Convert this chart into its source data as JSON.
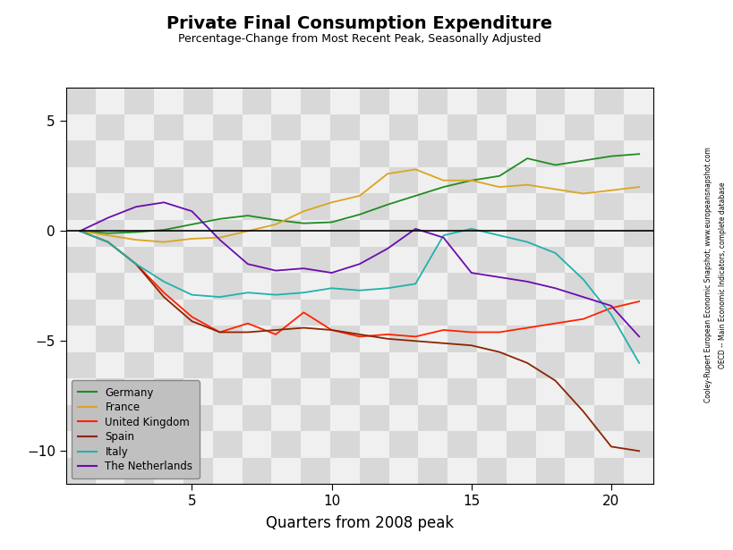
{
  "title": "Private Final Consumption Expenditure",
  "subtitle": "Percentage-Change from Most Recent Peak, Seasonally Adjusted",
  "xlabel": "Quarters from 2008 peak",
  "watermark_line1": "Cooley-Rupert European Economic Snapshot; www.europeansnapshot.com",
  "watermark_line2": "OECD -- Main Economic Indicators, complete database",
  "ylim": [
    -11.5,
    6.5
  ],
  "xlim": [
    0.5,
    21.5
  ],
  "yticks": [
    -10,
    -5,
    0,
    5
  ],
  "xticks": [
    5,
    10,
    15,
    20
  ],
  "legend_order": [
    "Germany",
    "France",
    "United Kingdom",
    "Spain",
    "Italy",
    "The Netherlands"
  ],
  "series": {
    "Germany": {
      "color": "#228B22",
      "x": [
        1,
        2,
        3,
        4,
        5,
        6,
        7,
        8,
        9,
        10,
        11,
        12,
        13,
        14,
        15,
        16,
        17,
        18,
        19,
        20,
        21
      ],
      "y": [
        0.0,
        -0.1,
        -0.05,
        0.05,
        0.3,
        0.55,
        0.7,
        0.5,
        0.35,
        0.4,
        0.75,
        1.2,
        1.6,
        2.0,
        2.3,
        2.5,
        3.3,
        3.0,
        3.2,
        3.4,
        3.5
      ]
    },
    "France": {
      "color": "#DAA520",
      "x": [
        1,
        2,
        3,
        4,
        5,
        6,
        7,
        8,
        9,
        10,
        11,
        12,
        13,
        14,
        15,
        16,
        17,
        18,
        19,
        20,
        21
      ],
      "y": [
        0.0,
        -0.2,
        -0.4,
        -0.5,
        -0.35,
        -0.3,
        0.0,
        0.3,
        0.9,
        1.3,
        1.6,
        2.6,
        2.8,
        2.3,
        2.3,
        2.0,
        2.1,
        1.9,
        1.7,
        1.85,
        2.0
      ]
    },
    "United Kingdom": {
      "color": "#FF2200",
      "x": [
        1,
        2,
        3,
        4,
        5,
        6,
        7,
        8,
        9,
        10,
        11,
        12,
        13,
        14,
        15,
        16,
        17,
        18,
        19,
        20,
        21
      ],
      "y": [
        0.0,
        -0.5,
        -1.5,
        -2.8,
        -3.9,
        -4.6,
        -4.2,
        -4.7,
        -3.7,
        -4.5,
        -4.8,
        -4.7,
        -4.8,
        -4.5,
        -4.6,
        -4.6,
        -4.4,
        -4.2,
        -4.0,
        -3.5,
        -3.2
      ]
    },
    "Spain": {
      "color": "#8B2500",
      "x": [
        1,
        2,
        3,
        4,
        5,
        6,
        7,
        8,
        9,
        10,
        11,
        12,
        13,
        14,
        15,
        16,
        17,
        18,
        19,
        20,
        21
      ],
      "y": [
        0.0,
        -0.5,
        -1.5,
        -3.0,
        -4.1,
        -4.6,
        -4.6,
        -4.5,
        -4.4,
        -4.5,
        -4.7,
        -4.9,
        -5.0,
        -5.1,
        -5.2,
        -5.5,
        -6.0,
        -6.8,
        -8.2,
        -9.8,
        -10.0
      ]
    },
    "Italy": {
      "color": "#20B2AA",
      "x": [
        1,
        2,
        3,
        4,
        5,
        6,
        7,
        8,
        9,
        10,
        11,
        12,
        13,
        14,
        15,
        16,
        17,
        18,
        19,
        20,
        21
      ],
      "y": [
        0.0,
        -0.5,
        -1.5,
        -2.3,
        -2.9,
        -3.0,
        -2.8,
        -2.9,
        -2.8,
        -2.6,
        -2.7,
        -2.6,
        -2.4,
        -0.2,
        0.1,
        -0.2,
        -0.5,
        -1.0,
        -2.2,
        -3.8,
        -6.0
      ]
    },
    "The Netherlands": {
      "color": "#6A0DAD",
      "x": [
        1,
        2,
        3,
        4,
        5,
        6,
        7,
        8,
        9,
        10,
        11,
        12,
        13,
        14,
        15,
        16,
        17,
        18,
        19,
        20,
        21
      ],
      "y": [
        0.0,
        0.6,
        1.1,
        1.3,
        0.9,
        -0.4,
        -1.5,
        -1.8,
        -1.7,
        -1.9,
        -1.5,
        -0.8,
        0.1,
        -0.3,
        -1.9,
        -2.1,
        -2.3,
        -2.6,
        -3.0,
        -3.4,
        -4.8
      ]
    }
  }
}
